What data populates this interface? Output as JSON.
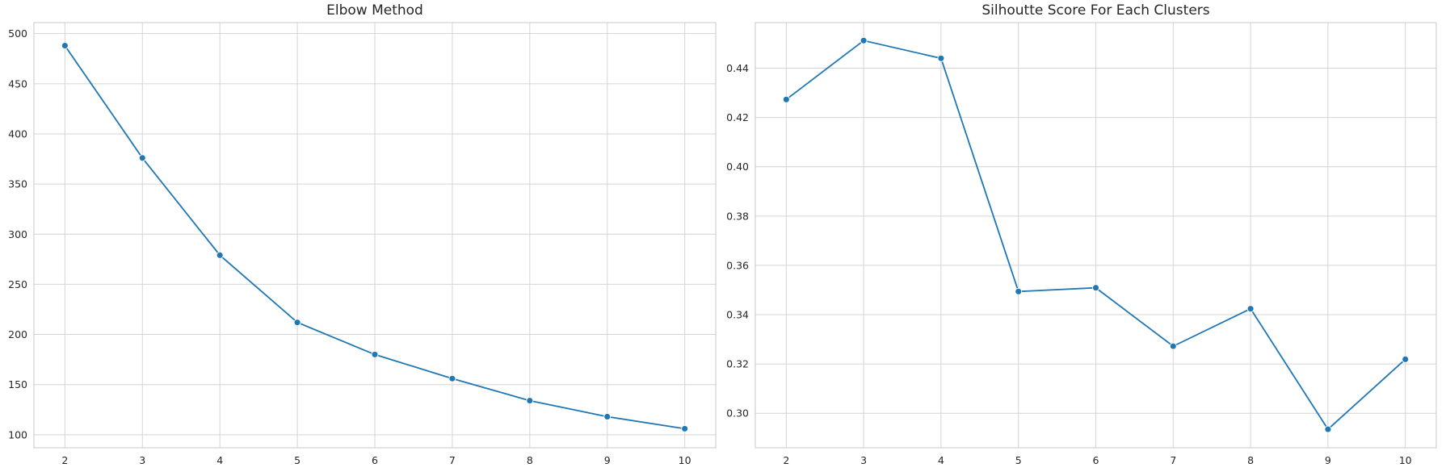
{
  "chart_data": [
    {
      "type": "line",
      "title": "Elbow Method",
      "xlabel": "",
      "ylabel": "",
      "x": [
        2,
        3,
        4,
        5,
        6,
        7,
        8,
        9,
        10
      ],
      "series": [
        {
          "values": [
            488,
            376,
            279,
            212,
            180,
            156,
            134,
            118,
            106
          ]
        }
      ],
      "xlim": [
        1.6,
        10.4
      ],
      "ylim": [
        87,
        511
      ],
      "xticks": [
        2,
        3,
        4,
        5,
        6,
        7,
        8,
        9,
        10
      ],
      "yticks": [
        100,
        150,
        200,
        250,
        300,
        350,
        400,
        450,
        500
      ],
      "ytick_decimals": 0,
      "grid": true,
      "marker": "circle",
      "color": "#1f77b4"
    },
    {
      "type": "line",
      "title": "Silhoutte Score For Each Clusters",
      "xlabel": "",
      "ylabel": "",
      "x": [
        2,
        3,
        4,
        5,
        6,
        7,
        8,
        9,
        10
      ],
      "series": [
        {
          "values": [
            0.4273,
            0.4512,
            0.444,
            0.3494,
            0.3509,
            0.3272,
            0.3424,
            0.2935,
            0.3219
          ]
        }
      ],
      "xlim": [
        1.6,
        10.4
      ],
      "ylim": [
        0.286,
        0.4585
      ],
      "xticks": [
        2,
        3,
        4,
        5,
        6,
        7,
        8,
        9,
        10
      ],
      "yticks": [
        0.3,
        0.32,
        0.34,
        0.36,
        0.38,
        0.4,
        0.42,
        0.44
      ],
      "ytick_decimals": 2,
      "grid": true,
      "marker": "circle",
      "color": "#1f77b4"
    }
  ]
}
